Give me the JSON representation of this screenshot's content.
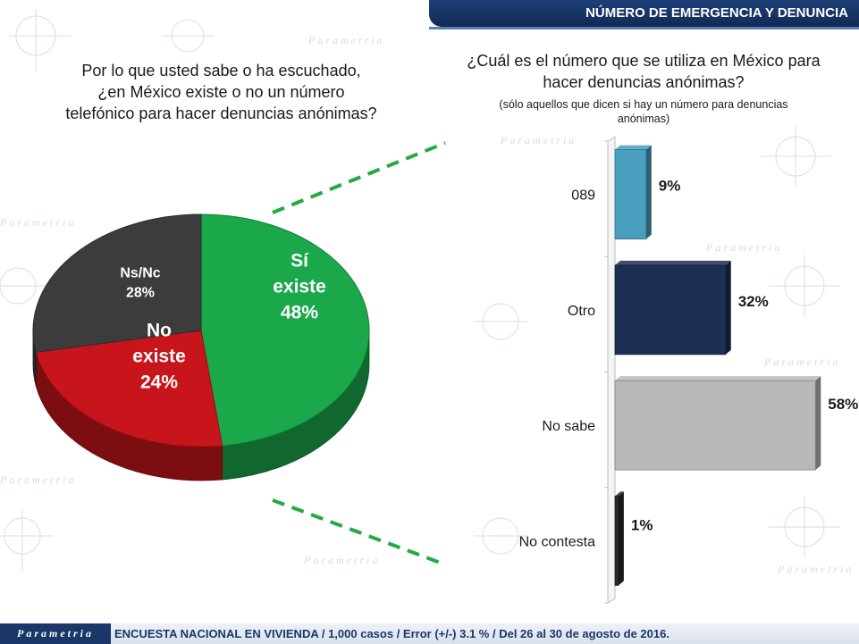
{
  "header": {
    "title": "NÚMERO DE EMERGENCIA Y DENUNCIA"
  },
  "brand": {
    "watermark": "Parametria",
    "logo": "Parametria"
  },
  "colors": {
    "header_bg": "#102a55",
    "si": "#1aa84a",
    "no": "#c8151b",
    "nsnc": "#3c3c3c",
    "bar_089": "#4a9fbf",
    "bar_otro": "#1c2f55",
    "bar_nosabe": "#b8b8b8",
    "bar_nocontesta": "#2a2a2a",
    "connector": "#22aa44"
  },
  "left_question": {
    "lines": [
      "Por lo que usted sabe o ha escuchado,",
      "¿en México existe o no un número",
      "telefónico para hacer denuncias anónimas?"
    ]
  },
  "right_question": {
    "lines": [
      "¿Cuál es el número que se utiliza en México para",
      "hacer denuncias anónimas?"
    ],
    "sub_lines": [
      "(sólo aquellos que dicen si hay un número para denuncias",
      "anónimas)"
    ]
  },
  "chart_data": [
    {
      "type": "pie",
      "slices": [
        {
          "lines": [
            "Sí",
            "existe",
            "48%"
          ],
          "value": 48,
          "color": "#1aa84a"
        },
        {
          "lines": [
            "No",
            "existe",
            "24%"
          ],
          "value": 24,
          "color": "#c8151b"
        },
        {
          "lines": [
            "Ns/Nc",
            "28%"
          ],
          "value": 28,
          "color": "#3c3c3c"
        }
      ]
    },
    {
      "type": "bar",
      "orientation": "horizontal",
      "categories": [
        "089",
        "Otro",
        "No sabe",
        "No contesta"
      ],
      "values": [
        9,
        32,
        58,
        1
      ],
      "value_labels": [
        "9%",
        "32%",
        "58%",
        "1%"
      ],
      "colors": [
        "#4a9fbf",
        "#1c2f55",
        "#b8b8b8",
        "#2a2a2a"
      ],
      "xlim": [
        0,
        60
      ]
    }
  ],
  "footer": {
    "text": "ENCUESTA NACIONAL EN VIVIENDA / 1,000 casos / Error (+/-) 3.1 % / Del 26 al 30 de agosto de 2016."
  }
}
